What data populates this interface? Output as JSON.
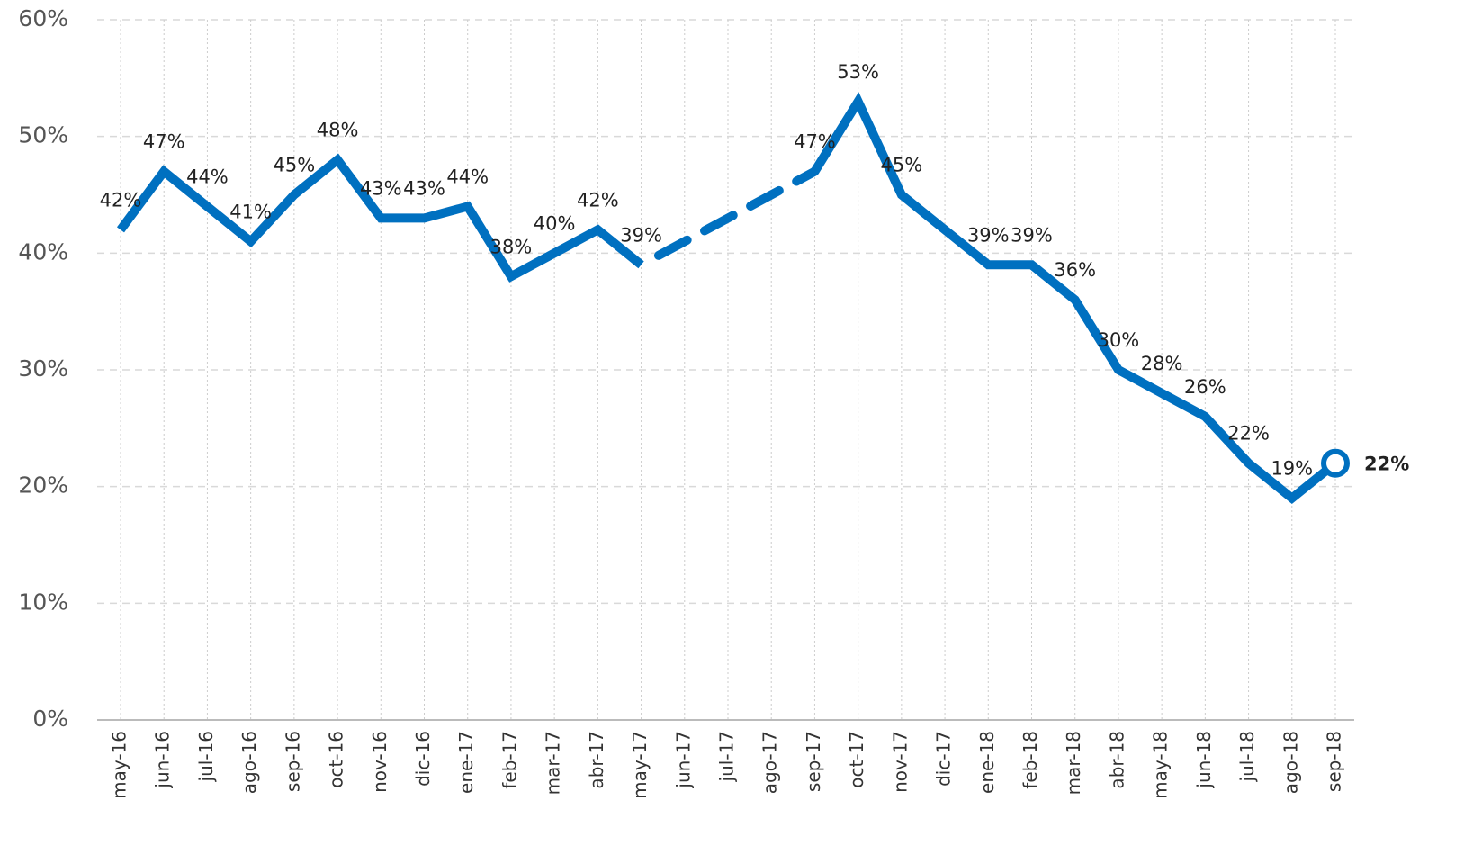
{
  "chart_data": {
    "type": "line",
    "categories": [
      "may-16",
      "jun-16",
      "jul-16",
      "ago-16",
      "sep-16",
      "oct-16",
      "nov-16",
      "dic-16",
      "ene-17",
      "feb-17",
      "mar-17",
      "abr-17",
      "may-17",
      "jun-17",
      "jul-17",
      "ago-17",
      "sep-17",
      "oct-17",
      "nov-17",
      "dic-17",
      "ene-18",
      "feb-18",
      "mar-18",
      "abr-18",
      "may-18",
      "jun-18",
      "jul-18",
      "ago-18",
      "sep-18"
    ],
    "series": [
      {
        "color": "#0070c0",
        "values": [
          42,
          47,
          44,
          41,
          45,
          48,
          43,
          43,
          44,
          38,
          40,
          42,
          39,
          null,
          null,
          null,
          47,
          53,
          45,
          42,
          39,
          39,
          36,
          30,
          28,
          26,
          22,
          19,
          22
        ],
        "value_labels": [
          "42%",
          "47%",
          "44%",
          "41%",
          "45%",
          "48%",
          "43%",
          "43%",
          "44%",
          "38%",
          "40%",
          "42%",
          "39%",
          null,
          null,
          null,
          "47%",
          "53%",
          "45%",
          null,
          "39%",
          "39%",
          "36%",
          "30%",
          "28%",
          "26%",
          "22%",
          "19%",
          "22%"
        ]
      }
    ],
    "ylim": [
      0,
      60
    ],
    "yticks": [
      {
        "value": 0,
        "label": "0%"
      },
      {
        "value": 10,
        "label": "10%"
      },
      {
        "value": 20,
        "label": "20%"
      },
      {
        "value": 30,
        "label": "30%"
      },
      {
        "value": 40,
        "label": "40%"
      },
      {
        "value": 50,
        "label": "50%"
      },
      {
        "value": 60,
        "label": "60%"
      }
    ],
    "grid": true
  }
}
